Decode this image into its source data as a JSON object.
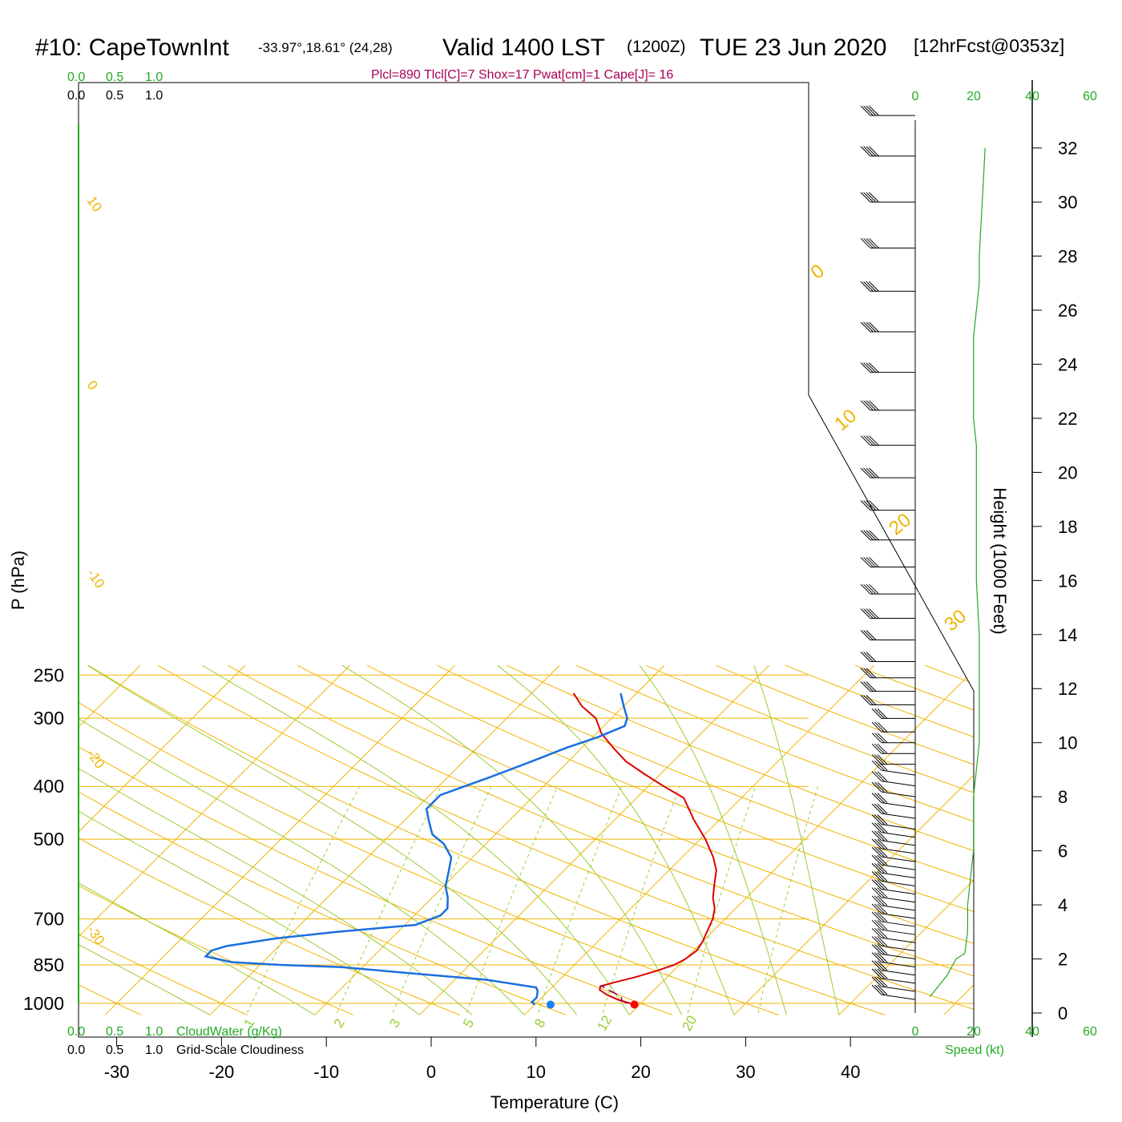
{
  "header": {
    "station": "#10: CapeTownInt",
    "coords": "-33.97°,18.61° (24,28)",
    "valid": "Valid 1400 LST",
    "zulu": "(1200Z)",
    "date": "TUE 23 Jun 2020",
    "forecast": "[12hrFcst@0353z]",
    "indices": "Plcl=890 Tlcl[C]=7 Shox=17 Pwat[cm]=1 Cape[J]= 16"
  },
  "colors": {
    "temperature": "#dd0000",
    "dewpoint": "#1a6fe0",
    "parcel": "#880066",
    "isotherm": "#f0b400",
    "dry_adiabat": "#f0b400",
    "moist_adiabat": "#9acd32",
    "mixing_ratio": "#9acd32",
    "green_text": "#22aa22",
    "indices_text": "#aa0055"
  },
  "scales": {
    "cloudwater_ticks": [
      "0.0",
      "0.5",
      "1.0"
    ],
    "cloudwater_label": "CloudWater (g/Kg)",
    "cloudiness_ticks": [
      "0.0",
      "0.5",
      "1.0"
    ],
    "cloudiness_label": "Grid-Scale Cloudiness",
    "speed_ticks": [
      "0",
      "20",
      "40",
      "60"
    ],
    "speed_label": "Speed (kt)"
  },
  "chart_data": {
    "type": "line",
    "diagram": "skew-T log-P",
    "xlabel": "Temperature (C)",
    "ylabel": "P (hPa)",
    "y2label": "Height (1000 Feet)",
    "x_ticks": [
      "-30",
      "-20",
      "-10",
      "0",
      "10",
      "20",
      "30",
      "40"
    ],
    "p_ticks": [
      "250",
      "300",
      "400",
      "500",
      "700",
      "850",
      "1000"
    ],
    "height_ticks": [
      "0",
      "2",
      "4",
      "6",
      "8",
      "10",
      "12",
      "14",
      "16",
      "18",
      "20",
      "22",
      "24",
      "26",
      "28",
      "30",
      "32"
    ],
    "dry_adiabat_labels": [
      "10",
      "0",
      "-10",
      "-20",
      "-30"
    ],
    "top_adiabat_labels": [
      "0",
      "10",
      "20",
      "30"
    ],
    "mixing_ratio_labels": [
      "1",
      "2",
      "3",
      "5",
      "8",
      "12",
      "20"
    ],
    "series": [
      {
        "points": [
          [
            19.5,
            1005
          ],
          [
            18.5,
            995
          ],
          [
            17.5,
            985
          ],
          [
            16,
            965
          ],
          [
            14.8,
            945
          ],
          [
            14.5,
            930
          ],
          [
            15.5,
            915
          ],
          [
            17,
            895
          ],
          [
            18.5,
            870
          ],
          [
            19.5,
            850
          ],
          [
            20,
            830
          ],
          [
            20.3,
            800
          ],
          [
            20,
            770
          ],
          [
            19.5,
            740
          ],
          [
            18.8,
            700
          ],
          [
            18,
            670
          ],
          [
            16.8,
            640
          ],
          [
            15.5,
            600
          ],
          [
            14.5,
            570
          ],
          [
            13,
            540
          ],
          [
            10.5,
            500
          ],
          [
            7.5,
            460
          ],
          [
            4.5,
            420
          ],
          [
            1.5,
            400
          ],
          [
            -1.5,
            380
          ],
          [
            -4.5,
            360
          ],
          [
            -7,
            340
          ],
          [
            -9.5,
            320
          ],
          [
            -11.5,
            300
          ],
          [
            -14,
            285
          ],
          [
            -16,
            270
          ]
        ]
      },
      {
        "points": [
          [
            10,
            1005
          ],
          [
            9.5,
            995
          ],
          [
            9.5,
            975
          ],
          [
            9,
            950
          ],
          [
            8.5,
            935
          ],
          [
            3,
            905
          ],
          [
            -5,
            880
          ],
          [
            -12,
            858
          ],
          [
            -18,
            850
          ],
          [
            -23,
            840
          ],
          [
            -26,
            820
          ],
          [
            -26,
            800
          ],
          [
            -25,
            785
          ],
          [
            -21,
            760
          ],
          [
            -16,
            740
          ],
          [
            -9,
            718
          ],
          [
            -7.5,
            690
          ],
          [
            -7.5,
            670
          ],
          [
            -8.5,
            640
          ],
          [
            -9.8,
            610
          ],
          [
            -11,
            570
          ],
          [
            -12,
            540
          ],
          [
            -14,
            510
          ],
          [
            -16,
            490
          ],
          [
            -17.5,
            465
          ],
          [
            -19,
            440
          ],
          [
            -19,
            415
          ],
          [
            -16,
            385
          ],
          [
            -13.5,
            360
          ],
          [
            -11.5,
            340
          ],
          [
            -9.5,
            325
          ],
          [
            -8,
            310
          ],
          [
            -8.5,
            300
          ],
          [
            -10,
            285
          ],
          [
            -11.5,
            270
          ]
        ]
      },
      {
        "points": [
          [
            18.7,
            1000
          ],
          [
            18,
            990
          ],
          [
            17.4,
            970
          ],
          [
            16,
            950
          ],
          [
            14.5,
            928
          ]
        ]
      }
    ],
    "surface_points": [
      {
        "t": 19.5,
        "p": 1005
      },
      {
        "t": 11.5,
        "p": 1005
      }
    ],
    "wind_profile": [
      [
        0.6,
        5
      ],
      [
        1.4,
        11
      ],
      [
        2.0,
        14
      ],
      [
        2.2,
        17
      ],
      [
        3,
        18
      ],
      [
        4,
        18
      ],
      [
        5,
        19
      ],
      [
        6,
        20
      ],
      [
        8,
        20
      ],
      [
        10,
        22
      ],
      [
        12,
        22
      ],
      [
        14,
        22
      ],
      [
        16,
        21
      ],
      [
        18,
        21
      ],
      [
        20,
        21
      ],
      [
        21,
        21
      ],
      [
        22,
        20
      ],
      [
        23,
        20
      ],
      [
        24,
        20
      ],
      [
        25,
        20
      ],
      [
        26,
        21
      ],
      [
        27,
        22
      ],
      [
        28,
        22
      ],
      [
        30,
        23
      ],
      [
        32,
        24
      ]
    ],
    "wind_barb_heights": [
      0.5,
      0.8,
      1.1,
      1.4,
      1.7,
      2.0,
      2.3,
      2.6,
      2.9,
      3.2,
      3.5,
      3.8,
      4.1,
      4.4,
      4.7,
      5.0,
      5.3,
      5.6,
      5.9,
      6.2,
      6.5,
      6.8,
      7.2,
      7.6,
      8.0,
      8.4,
      8.8,
      9.2,
      9.6,
      10.0,
      10.4,
      10.9,
      11.4,
      11.9,
      12.4,
      13.0,
      13.8,
      14.6,
      15.5,
      16.5,
      17.5,
      18.6,
      19.8,
      21.0,
      22.3,
      23.7,
      25.2,
      26.7,
      28.3,
      30.0,
      31.7,
      33.2
    ],
    "wind_speed_xlim": [
      0,
      60
    ],
    "height_ylim": [
      0,
      33
    ]
  }
}
